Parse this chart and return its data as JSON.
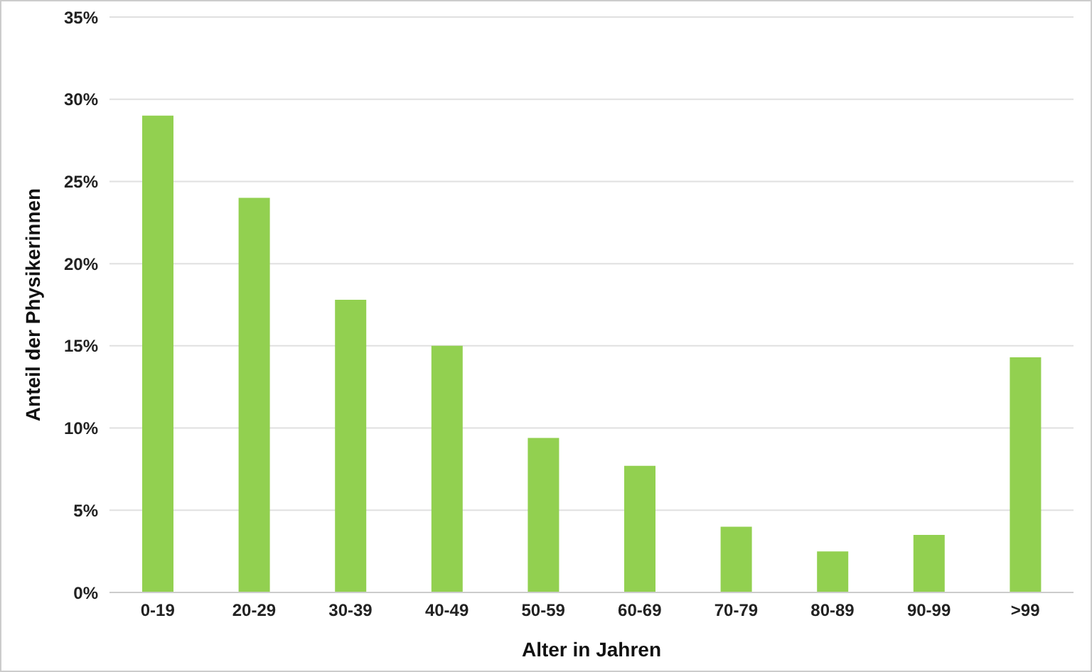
{
  "chart_data": {
    "type": "bar",
    "xlabel": "Alter in Jahren",
    "ylabel": "Anteil der Physikerinnen",
    "categories": [
      "0-19",
      "20-29",
      "30-39",
      "40-49",
      "50-59",
      "60-69",
      "70-79",
      "80-89",
      "90-99",
      ">99"
    ],
    "values": [
      29.0,
      24.0,
      17.8,
      15.0,
      9.4,
      7.7,
      4.0,
      2.5,
      3.5,
      14.3
    ],
    "color": "#92d050",
    "ylim": [
      0,
      35
    ],
    "yticks": [
      {
        "value": 0,
        "label": "0%"
      },
      {
        "value": 5,
        "label": "5%"
      },
      {
        "value": 10,
        "label": "10%"
      },
      {
        "value": 15,
        "label": "15%"
      },
      {
        "value": 20,
        "label": "20%"
      },
      {
        "value": 25,
        "label": "25%"
      },
      {
        "value": 30,
        "label": "30%"
      },
      {
        "value": 35,
        "label": "35%"
      }
    ],
    "grid": "y",
    "legend": false
  }
}
